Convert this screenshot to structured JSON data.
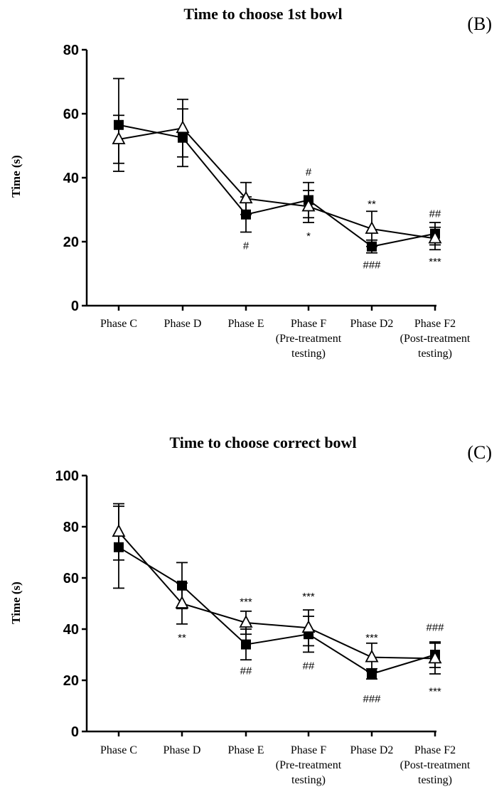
{
  "chart_data": [
    {
      "type": "line",
      "title": "Time to choose 1st bowl",
      "panel_label": "(B)",
      "ylabel": "Time (s)",
      "xlabel": "",
      "ylim": [
        0,
        80
      ],
      "yticks": [
        "0",
        "20",
        "40",
        "60",
        "80"
      ],
      "categories": [
        [
          "Phase C"
        ],
        [
          "Phase D"
        ],
        [
          "Phase E"
        ],
        [
          "Phase F",
          "(Pre-treatment",
          "testing)"
        ],
        [
          "Phase D2"
        ],
        [
          "Phase F2",
          "(Post-treatment",
          "testing)"
        ]
      ],
      "series": [
        {
          "marker": "square",
          "values": [
            56.5,
            52.5,
            28.5,
            33,
            18.5,
            22.5
          ],
          "errors": [
            14.5,
            9,
            5.5,
            5.5,
            2,
            3.5
          ]
        },
        {
          "marker": "triangle",
          "values": [
            52,
            55.5,
            33.5,
            31,
            24,
            21
          ],
          "errors": [
            7.5,
            9,
            5,
            5,
            5.5,
            3.5
          ]
        }
      ],
      "annotations": [
        {
          "text": "#",
          "x": 2,
          "y": 19
        },
        {
          "text": "#",
          "x": 3,
          "y": 42
        },
        {
          "text": "*",
          "x": 3,
          "y": 22
        },
        {
          "text": "**",
          "x": 4,
          "y": 32
        },
        {
          "text": "###",
          "x": 4,
          "y": 13
        },
        {
          "text": "##",
          "x": 5,
          "y": 29
        },
        {
          "text": "***",
          "x": 5,
          "y": 14
        }
      ]
    },
    {
      "type": "line",
      "title": "Time to choose correct bowl",
      "panel_label": "(C)",
      "ylabel": "Time (s)",
      "xlabel": "",
      "ylim": [
        0,
        100
      ],
      "yticks": [
        "0",
        "20",
        "40",
        "60",
        "80",
        "100"
      ],
      "categories": [
        [
          "Phase C"
        ],
        [
          "Phase D"
        ],
        [
          "Phase E"
        ],
        [
          "Phase F",
          "(Pre-treatment",
          "testing)"
        ],
        [
          "Phase D2"
        ],
        [
          "Phase F2",
          "(Post-treatment",
          "testing)"
        ]
      ],
      "series": [
        {
          "marker": "square",
          "values": [
            72,
            57,
            34,
            38,
            22.5,
            30
          ],
          "errors": [
            16,
            9,
            6,
            7,
            2,
            5
          ]
        },
        {
          "marker": "triangle",
          "values": [
            78,
            50,
            42.5,
            40.5,
            29,
            28.5
          ],
          "errors": [
            11,
            8,
            4.5,
            7,
            5.5,
            6
          ]
        }
      ],
      "annotations": [
        {
          "text": "**",
          "x": 1,
          "y": 37
        },
        {
          "text": "***",
          "x": 2,
          "y": 51
        },
        {
          "text": "##",
          "x": 2,
          "y": 24
        },
        {
          "text": "***",
          "x": 3,
          "y": 53
        },
        {
          "text": "##",
          "x": 3,
          "y": 26
        },
        {
          "text": "***",
          "x": 4,
          "y": 37
        },
        {
          "text": "###",
          "x": 4,
          "y": 13
        },
        {
          "text": "###",
          "x": 5,
          "y": 41
        },
        {
          "text": "***",
          "x": 5,
          "y": 16
        }
      ]
    }
  ]
}
